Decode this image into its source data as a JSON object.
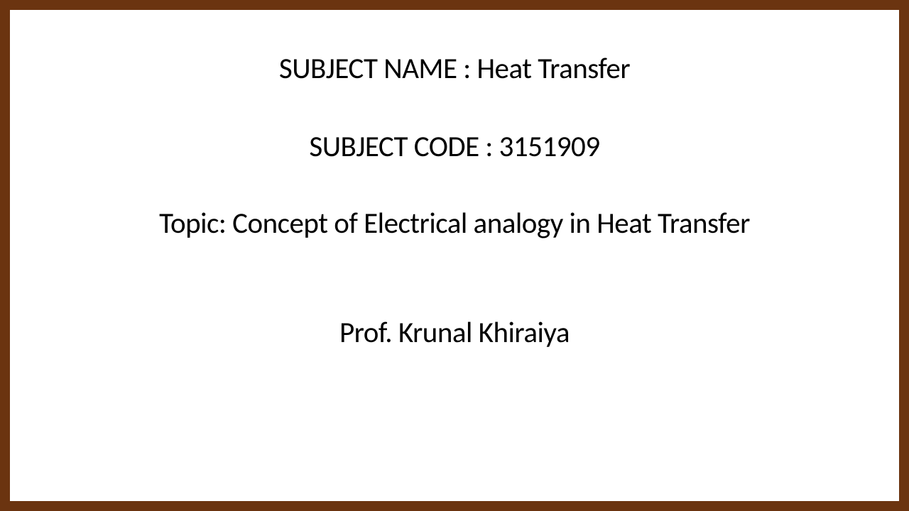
{
  "slide": {
    "border_color": "#6b3410",
    "background_color": "#ffffff",
    "text_color": "#000000",
    "font_size": 41,
    "subject_name": "SUBJECT NAME : Heat Transfer",
    "subject_code": "SUBJECT CODE : 3151909",
    "topic": "Topic: Concept of Electrical analogy in Heat Transfer",
    "professor": "Prof. Krunal Khiraiya"
  }
}
